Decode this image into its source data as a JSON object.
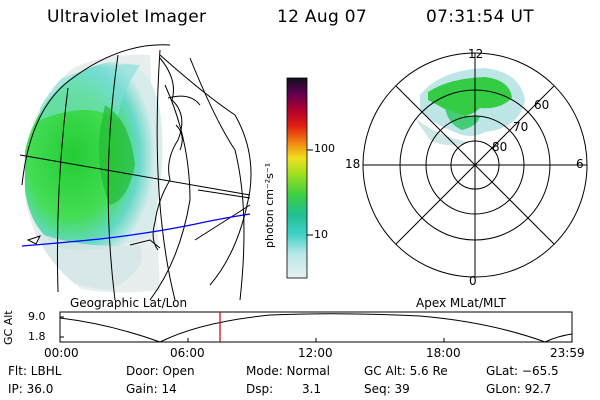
{
  "header": {
    "instrument": "Ultraviolet Imager",
    "date": "12 Aug 07",
    "time": "07:31:54 UT"
  },
  "colorbar": {
    "unit_label": "photon cm⁻²s⁻¹",
    "ticks": [
      "100",
      "10"
    ]
  },
  "polar": {
    "mlt_labels": [
      "12",
      "18",
      "6",
      "0"
    ],
    "lat_labels": [
      "60",
      "70",
      "80"
    ]
  },
  "map_titles": {
    "left": "Geographic Lat/Lon",
    "right": "Apex MLat/MLT"
  },
  "timeline": {
    "ylabel": "GC Alt",
    "y_ticks": [
      "9.0",
      "1.8"
    ],
    "x_ticks": [
      "00:00",
      "06:00",
      "12:00",
      "18:00",
      "23:59"
    ],
    "marker_time": "07:31",
    "marker_color": "#cc0000"
  },
  "info": {
    "row1": {
      "flt": "Flt: LBHL",
      "door": "Door: Open",
      "mode": "Mode: Normal",
      "gcalt": "GC Alt: 5.6 Re",
      "glat": "GLat: −65.5"
    },
    "row2": {
      "ip": "IP: 36.0",
      "gain": "Gain: 14",
      "dsp_label": "Dsp:",
      "dsp_value": "3.1",
      "seq": "Seq: 39",
      "glon": "GLon: 92.7"
    }
  },
  "colors": {
    "aurora_green": "#33dd33",
    "aurora_cyan": "#7fe4e4",
    "track_blue": "#0000ff"
  }
}
